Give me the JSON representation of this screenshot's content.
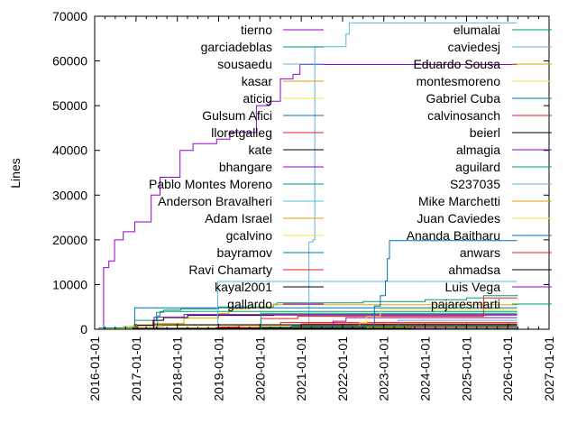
{
  "chart_data": {
    "type": "line",
    "style": "steps",
    "title": "",
    "xlabel": "",
    "ylabel": "Lines",
    "xlim": [
      "2016-01-01",
      "2027-01-01"
    ],
    "ylim": [
      0,
      70000
    ],
    "grid": false,
    "legend_placement": "inside, two columns",
    "x_ticks": [
      "2016-01-01",
      "2017-01-01",
      "2018-01-01",
      "2019-01-01",
      "2020-01-01",
      "2021-01-01",
      "2022-01-01",
      "2023-01-01",
      "2024-01-01",
      "2025-01-01",
      "2026-01-01",
      "2027-01-01"
    ],
    "y_ticks": [
      0,
      10000,
      20000,
      30000,
      40000,
      50000,
      60000,
      70000
    ],
    "series": [
      {
        "name": "tierno",
        "color": "#9400d3",
        "points": [
          [
            "2016-03-15",
            0
          ],
          [
            "2016-03-20",
            13800
          ],
          [
            "2016-05-05",
            15300
          ],
          [
            "2016-06-25",
            20000
          ],
          [
            "2016-09-10",
            21800
          ],
          [
            "2016-12-20",
            24000
          ],
          [
            "2017-05-15",
            30000
          ],
          [
            "2017-08-01",
            34000
          ],
          [
            "2018-01-25",
            40000
          ],
          [
            "2018-05-20",
            41500
          ],
          [
            "2018-12-15",
            42500
          ],
          [
            "2019-04-10",
            44000
          ],
          [
            "2019-12-01",
            50000
          ],
          [
            "2020-03-25",
            51000
          ],
          [
            "2020-06-30",
            56000
          ],
          [
            "2020-10-20",
            57000
          ],
          [
            "2020-12-20",
            59200
          ],
          [
            "2026-03-25",
            59200
          ]
        ]
      },
      {
        "name": "garciadeblas",
        "color": "#009e73",
        "points": [
          [
            "2016-02-01",
            0
          ],
          [
            "2016-02-10",
            300
          ],
          [
            "2016-12-01",
            500
          ],
          [
            "2016-12-20",
            2000
          ],
          [
            "2017-07-01",
            3800
          ],
          [
            "2017-09-01",
            4300
          ],
          [
            "2018-02-01",
            4600
          ],
          [
            "2019-01-01",
            5000
          ],
          [
            "2020-05-01",
            5600
          ],
          [
            "2020-06-01",
            5900
          ],
          [
            "2022-07-01",
            6200
          ],
          [
            "2024-01-01",
            6600
          ],
          [
            "2025-01-01",
            7000
          ],
          [
            "2025-06-01",
            7500
          ],
          [
            "2026-03-25",
            7700
          ]
        ]
      },
      {
        "name": "sousaedu",
        "color": "#56b4e9",
        "points": [
          [
            "2021-03-01",
            0
          ],
          [
            "2021-03-10",
            19500
          ],
          [
            "2021-04-15",
            20000
          ],
          [
            "2021-05-01",
            63200
          ],
          [
            "2022-01-15",
            63200
          ],
          [
            "2022-02-01",
            66000
          ],
          [
            "2022-03-01",
            68500
          ],
          [
            "2026-03-25",
            68500
          ]
        ]
      },
      {
        "name": "kasar",
        "color": "#e69f00",
        "points": [
          [
            "2016-12-01",
            0
          ],
          [
            "2016-12-10",
            1000
          ],
          [
            "2017-06-01",
            1300
          ],
          [
            "2018-03-01",
            2500
          ],
          [
            "2019-01-01",
            3500
          ],
          [
            "2019-04-01",
            4600
          ],
          [
            "2019-10-01",
            5000
          ],
          [
            "2020-05-01",
            5500
          ],
          [
            "2026-03-25",
            5500
          ]
        ]
      },
      {
        "name": "aticig",
        "color": "#f0e442",
        "points": [
          [
            "2017-03-01",
            0
          ],
          [
            "2017-03-10",
            200
          ],
          [
            "2018-01-01",
            300
          ],
          [
            "2019-06-01",
            800
          ],
          [
            "2026-03-25",
            800
          ]
        ]
      },
      {
        "name": "Gulsum Afici",
        "color": "#0072b2",
        "points": [
          [
            "2016-12-15",
            0
          ],
          [
            "2016-12-20",
            4800
          ],
          [
            "2026-03-25",
            4800
          ]
        ]
      },
      {
        "name": "lloretgalleg",
        "color": "#e51e10",
        "points": [
          [
            "2019-01-01",
            0
          ],
          [
            "2019-01-15",
            500
          ],
          [
            "2019-07-01",
            900
          ],
          [
            "2020-07-01",
            1500
          ],
          [
            "2026-03-25",
            1500
          ]
        ]
      },
      {
        "name": "kate",
        "color": "#000000",
        "points": [
          [
            "2017-01-01",
            0
          ],
          [
            "2017-01-15",
            900
          ],
          [
            "2017-06-01",
            2000
          ],
          [
            "2017-09-01",
            2600
          ],
          [
            "2018-04-01",
            3100
          ],
          [
            "2020-05-01",
            3200
          ],
          [
            "2026-03-25",
            3200
          ]
        ]
      },
      {
        "name": "bhangare",
        "color": "#9400d3",
        "points": [
          [
            "2017-06-01",
            0
          ],
          [
            "2017-06-10",
            2700
          ],
          [
            "2018-03-01",
            3300
          ],
          [
            "2026-03-25",
            3300
          ]
        ]
      },
      {
        "name": "Pablo Montes Moreno",
        "color": "#009e73",
        "points": [
          [
            "2017-07-01",
            0
          ],
          [
            "2017-07-10",
            3000
          ],
          [
            "2017-08-01",
            4000
          ],
          [
            "2026-03-25",
            4000
          ]
        ]
      },
      {
        "name": "Anderson Bravalheri",
        "color": "#56b4e9",
        "points": [
          [
            "2018-12-20",
            0
          ],
          [
            "2018-12-25",
            10700
          ],
          [
            "2026-03-25",
            10700
          ]
        ]
      },
      {
        "name": "Adam Israel",
        "color": "#e69f00",
        "points": [
          [
            "2016-09-01",
            0
          ],
          [
            "2016-09-10",
            600
          ],
          [
            "2017-09-01",
            900
          ],
          [
            "2026-03-25",
            900
          ]
        ]
      },
      {
        "name": "gcalvino",
        "color": "#f0e442",
        "points": [
          [
            "2016-04-01",
            0
          ],
          [
            "2016-04-10",
            100
          ],
          [
            "2026-03-25",
            150
          ]
        ]
      },
      {
        "name": "bayramov",
        "color": "#0072b2",
        "points": [
          [
            "2019-09-01",
            0
          ],
          [
            "2019-09-10",
            300
          ],
          [
            "2026-03-25",
            300
          ]
        ]
      },
      {
        "name": "Ravi Chamarty",
        "color": "#e51e10",
        "points": [
          [
            "2020-01-01",
            0
          ],
          [
            "2020-01-10",
            2400
          ],
          [
            "2020-12-01",
            2900
          ],
          [
            "2025-04-01",
            2900
          ],
          [
            "2025-06-01",
            7000
          ],
          [
            "2026-03-25",
            7000
          ]
        ]
      },
      {
        "name": "kayal2001",
        "color": "#000000",
        "points": [
          [
            "2017-06-01",
            0
          ],
          [
            "2017-06-05",
            1000
          ],
          [
            "2026-03-25",
            1000
          ]
        ]
      },
      {
        "name": "gallardo",
        "color": "#9400d3",
        "points": [
          [
            "2021-10-01",
            0
          ],
          [
            "2021-10-10",
            1800
          ],
          [
            "2022-02-01",
            2600
          ],
          [
            "2026-03-25",
            2600
          ]
        ]
      },
      {
        "name": "elumalai",
        "color": "#009e73",
        "points": [
          [
            "2020-01-01",
            0
          ],
          [
            "2020-01-10",
            3600
          ],
          [
            "2026-03-25",
            3600
          ]
        ]
      },
      {
        "name": "caviedesj",
        "color": "#56b4e9",
        "points": [
          [
            "2023-05-01",
            0
          ],
          [
            "2023-05-10",
            2000
          ],
          [
            "2026-03-25",
            2000
          ]
        ]
      },
      {
        "name": "Eduardo Sousa",
        "color": "#e69f00",
        "points": [
          [
            "2022-06-01",
            0
          ],
          [
            "2022-06-10",
            800
          ],
          [
            "2026-03-25",
            800
          ]
        ]
      },
      {
        "name": "montesmoreno",
        "color": "#f0e442",
        "points": [
          [
            "2022-04-01",
            0
          ],
          [
            "2022-06-01",
            1500
          ],
          [
            "2022-08-01",
            2800
          ],
          [
            "2022-12-01",
            4400
          ],
          [
            "2026-03-25",
            4400
          ]
        ]
      },
      {
        "name": "Gabriel Cuba",
        "color": "#0072b2",
        "points": [
          [
            "2022-10-01",
            0
          ],
          [
            "2022-10-10",
            5200
          ],
          [
            "2022-12-01",
            7500
          ],
          [
            "2023-01-15",
            10800
          ],
          [
            "2023-02-01",
            15800
          ],
          [
            "2023-02-20",
            19800
          ],
          [
            "2026-03-25",
            19800
          ]
        ]
      },
      {
        "name": "calvinosanch",
        "color": "#e51e10",
        "points": [
          [
            "2018-12-01",
            0
          ],
          [
            "2018-12-10",
            400
          ],
          [
            "2026-03-25",
            400
          ]
        ]
      },
      {
        "name": "beierl",
        "color": "#000000",
        "points": [
          [
            "2016-12-01",
            0
          ],
          [
            "2016-12-05",
            200
          ],
          [
            "2026-03-25",
            200
          ]
        ]
      },
      {
        "name": "almagia",
        "color": "#9400d3",
        "points": [
          [
            "2024-01-01",
            0
          ],
          [
            "2024-01-10",
            300
          ],
          [
            "2026-03-25",
            500
          ]
        ]
      },
      {
        "name": "aguilard",
        "color": "#009e73",
        "points": [
          [
            "2020-01-01",
            0
          ],
          [
            "2020-01-10",
            500
          ],
          [
            "2026-03-25",
            500
          ]
        ]
      },
      {
        "name": "S237035",
        "color": "#56b4e9",
        "points": [
          [
            "2025-01-01",
            0
          ],
          [
            "2025-01-10",
            200
          ],
          [
            "2026-03-25",
            200
          ]
        ]
      },
      {
        "name": "Mike Marchetti",
        "color": "#e69f00",
        "points": [
          [
            "2022-08-01",
            0
          ],
          [
            "2022-08-10",
            400
          ],
          [
            "2026-03-25",
            400
          ]
        ]
      },
      {
        "name": "Juan Caviedes",
        "color": "#f0e442",
        "points": [
          [
            "2023-06-01",
            0
          ],
          [
            "2023-06-10",
            100
          ],
          [
            "2026-03-25",
            100
          ]
        ]
      },
      {
        "name": "Ananda Baitharu",
        "color": "#0072b2",
        "points": [
          [
            "2020-10-01",
            0
          ],
          [
            "2020-10-10",
            700
          ],
          [
            "2026-03-25",
            700
          ]
        ]
      },
      {
        "name": "anwars",
        "color": "#e51e10",
        "points": [
          [
            "2021-01-01",
            0
          ],
          [
            "2021-01-10",
            1200
          ],
          [
            "2026-03-25",
            1200
          ]
        ]
      },
      {
        "name": "ahmadsa",
        "color": "#000000",
        "points": [
          [
            "2020-06-01",
            0
          ],
          [
            "2020-06-10",
            100
          ],
          [
            "2026-03-25",
            100
          ]
        ]
      },
      {
        "name": "Luis Vega",
        "color": "#9400d3",
        "points": [
          [
            "2023-09-01",
            0
          ],
          [
            "2023-09-10",
            200
          ],
          [
            "2026-03-25",
            300
          ]
        ]
      },
      {
        "name": "pajaresmarti",
        "color": "#009e73",
        "points": [
          [
            "2024-06-01",
            0
          ],
          [
            "2024-06-10",
            100
          ],
          [
            "2026-03-25",
            100
          ]
        ]
      }
    ]
  }
}
